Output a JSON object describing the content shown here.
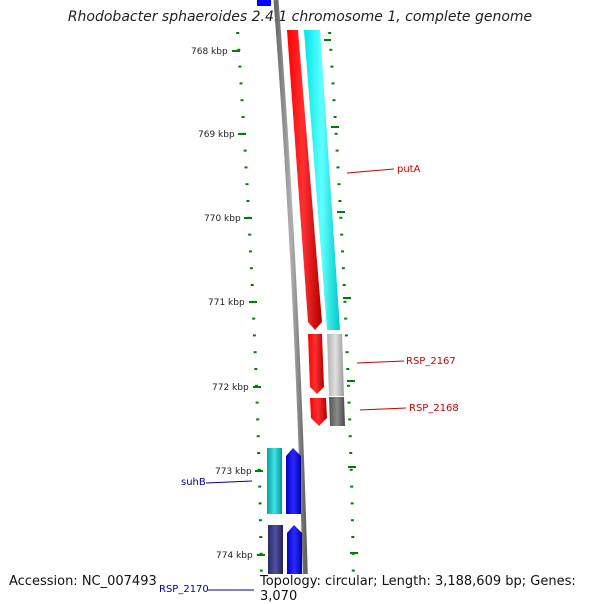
{
  "title": "Rhodobacter sphaeroides 2.4.1 chromosome 1, complete genome",
  "footer": {
    "accession": "Accession: NC_007493",
    "summary": "Topology: circular; Length: 3,188,609 bp; Genes: 3,070"
  },
  "scale_labels": [
    "768 kbp",
    "769 kbp",
    "770 kbp",
    "771 kbp",
    "772 kbp",
    "773 kbp",
    "774 kbp"
  ],
  "gene_labels": {
    "putA": "putA",
    "rsp2167": "RSP_2167",
    "rsp2168": "RSP_2168",
    "suhB": "suhB",
    "rsp2170": "RSP_2170"
  },
  "colors": {
    "tick": "#008000",
    "backbone": "#808080",
    "forward_gene": "#ff0000",
    "forward_cds": "#00ffff",
    "reverse_gene": "#0000ff",
    "reverse_cds": "#00c0c0",
    "label_red": "#cc0000",
    "label_blue": "#000099"
  }
}
